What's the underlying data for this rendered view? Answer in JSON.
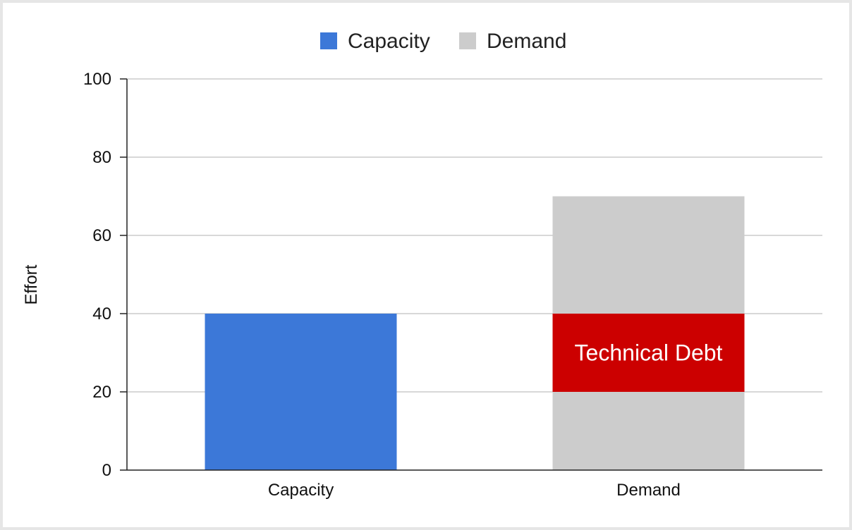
{
  "chart_data": {
    "type": "bar",
    "stacked": true,
    "categories": [
      "Capacity",
      "Demand"
    ],
    "ylabel": "Effort",
    "ylim": [
      0,
      100
    ],
    "yticks": [
      0,
      20,
      40,
      60,
      80,
      100
    ],
    "grid": true,
    "legend": {
      "placement": "top-center",
      "entries": [
        {
          "label": "Capacity",
          "color": "#3c78d8"
        },
        {
          "label": "Demand",
          "color": "#cccccc"
        }
      ]
    },
    "segments": [
      {
        "category": "Capacity",
        "from": 0,
        "to": 40,
        "color": "#3c78d8",
        "label": ""
      },
      {
        "category": "Demand",
        "from": 0,
        "to": 20,
        "color": "#cccccc",
        "label": ""
      },
      {
        "category": "Demand",
        "from": 20,
        "to": 40,
        "color": "#cc0000",
        "label": "Technical Debt"
      },
      {
        "category": "Demand",
        "from": 40,
        "to": 70,
        "color": "#cccccc",
        "label": ""
      }
    ]
  }
}
